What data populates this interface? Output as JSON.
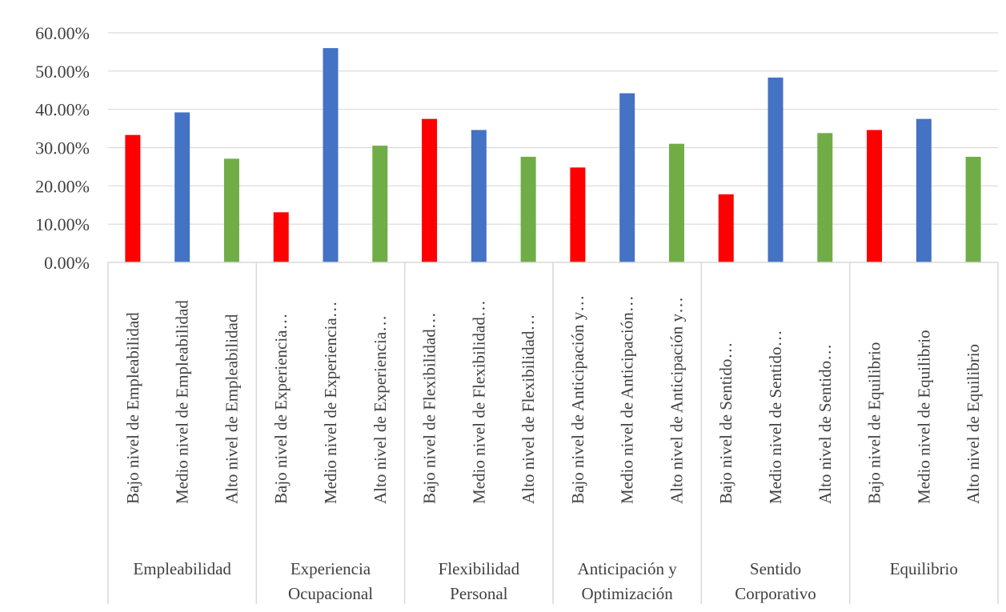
{
  "chart_data": {
    "type": "bar",
    "ylim": [
      0,
      0.6
    ],
    "y_ticks": [
      {
        "value": 0.0,
        "label": "0.00%"
      },
      {
        "value": 0.1,
        "label": "10.00%"
      },
      {
        "value": 0.2,
        "label": "20.00%"
      },
      {
        "value": 0.3,
        "label": "30.00%"
      },
      {
        "value": 0.4,
        "label": "40.00%"
      },
      {
        "value": 0.5,
        "label": "50.00%"
      },
      {
        "value": 0.6,
        "label": "60.00%"
      }
    ],
    "grid": true,
    "legend": "none",
    "colors": {
      "bajo": "#ff0000",
      "medio": "#4472c4",
      "alto": "#70ad47"
    },
    "groups": [
      {
        "lines": [
          "Empleabilidad"
        ],
        "bars": [
          {
            "label": "Bajo nivel de Empleabilidad",
            "level": "bajo",
            "value": 0.333
          },
          {
            "label": "Medio nivel de Empleabilidad",
            "level": "medio",
            "value": 0.392
          },
          {
            "label": "Alto nivel de Empleabilidad",
            "level": "alto",
            "value": 0.271
          }
        ]
      },
      {
        "lines": [
          "Experiencia",
          "Ocupacional"
        ],
        "bars": [
          {
            "label": "Bajo nivel de Experiencia…",
            "level": "bajo",
            "value": 0.131
          },
          {
            "label": "Medio nivel de Experiencia…",
            "level": "medio",
            "value": 0.56
          },
          {
            "label": "Alto nivel de Experiencia…",
            "level": "alto",
            "value": 0.305
          }
        ]
      },
      {
        "lines": [
          "Flexibilidad",
          "Personal"
        ],
        "bars": [
          {
            "label": "Bajo nivel de Flexibilidad…",
            "level": "bajo",
            "value": 0.375
          },
          {
            "label": "Medio nivel de Flexibilidad…",
            "level": "medio",
            "value": 0.346
          },
          {
            "label": "Alto nivel de Flexibilidad…",
            "level": "alto",
            "value": 0.276
          }
        ]
      },
      {
        "lines": [
          "Anticipación y",
          "Optimización"
        ],
        "bars": [
          {
            "label": "Bajo nivel de Anticipación y…",
            "level": "bajo",
            "value": 0.248
          },
          {
            "label": "Medio nivel de Anticipación…",
            "level": "medio",
            "value": 0.442
          },
          {
            "label": "Alto nivel de Anticipación y…",
            "level": "alto",
            "value": 0.31
          }
        ]
      },
      {
        "lines": [
          "Sentido",
          "Corporativo"
        ],
        "bars": [
          {
            "label": "Bajo nivel de Sentido…",
            "level": "bajo",
            "value": 0.178
          },
          {
            "label": "Medio nivel de Sentido…",
            "level": "medio",
            "value": 0.483
          },
          {
            "label": "Alto nivel de Sentido…",
            "level": "alto",
            "value": 0.338
          }
        ]
      },
      {
        "lines": [
          "Equilibrio"
        ],
        "bars": [
          {
            "label": "Bajo nivel de Equilibrio",
            "level": "bajo",
            "value": 0.346
          },
          {
            "label": "Medio nivel de Equilibrio",
            "level": "medio",
            "value": 0.375
          },
          {
            "label": "Alto nivel de Equilibrio",
            "level": "alto",
            "value": 0.276
          }
        ]
      }
    ]
  }
}
